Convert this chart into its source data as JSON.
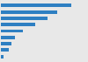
{
  "values": [
    93,
    74,
    62,
    45,
    29,
    19,
    14,
    10,
    3
  ],
  "bar_color": "#2e7fc2",
  "background_color": "#e8e8e8",
  "xlim": [
    0,
    100
  ],
  "bar_height": 0.55,
  "figwidth": 1.0,
  "figheight": 0.71,
  "dpi": 100
}
